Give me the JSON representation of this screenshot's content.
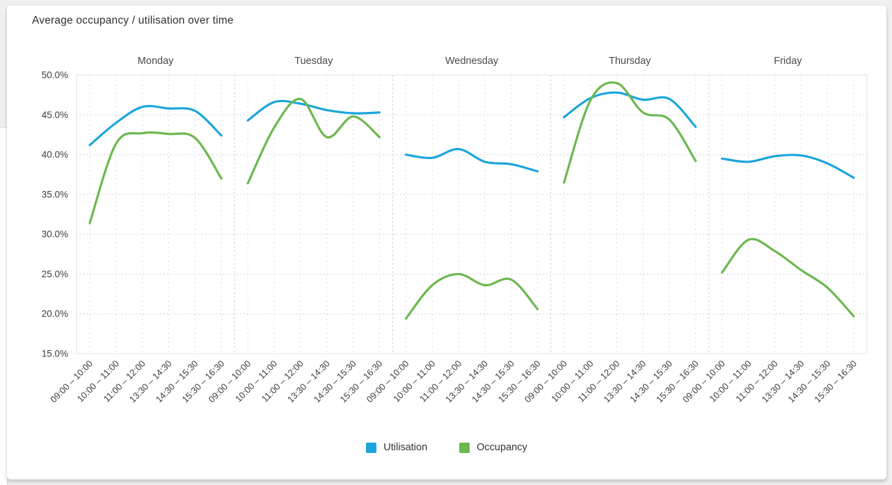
{
  "chart_data": {
    "type": "line",
    "title": "Average occupancy / utilisation over time",
    "ylabel": "",
    "xlabel": "",
    "y_axis": {
      "min": 15,
      "max": 50,
      "step": 5,
      "grid": true
    },
    "y_tick_labels": [
      "50.0%",
      "45.0%",
      "40.0%",
      "35.0%",
      "30.0%",
      "25.0%",
      "20.0%",
      "15.0%"
    ],
    "x_categories": [
      "09:00 – 10:00",
      "10:00 – 11:00",
      "11:00 – 12:00",
      "13:30 – 14:30",
      "14:30 – 15:30",
      "15:30 – 16:30"
    ],
    "series_meta": [
      {
        "name": "Utilisation",
        "color": "#1BA5DC"
      },
      {
        "name": "Occupancy",
        "color": "#6CB84F"
      }
    ],
    "panels": [
      {
        "day": "Monday",
        "series": [
          {
            "name": "Utilisation",
            "values": [
              41.2,
              44.0,
              46.0,
              45.8,
              45.5,
              42.4
            ]
          },
          {
            "name": "Occupancy",
            "values": [
              31.4,
              41.4,
              42.7,
              42.6,
              42.1,
              37.0
            ]
          }
        ]
      },
      {
        "day": "Tuesday",
        "series": [
          {
            "name": "Utilisation",
            "values": [
              44.3,
              46.6,
              46.4,
              45.6,
              45.2,
              45.3
            ]
          },
          {
            "name": "Occupancy",
            "values": [
              36.4,
              43.4,
              47.0,
              42.2,
              44.8,
              42.2
            ]
          }
        ]
      },
      {
        "day": "Wednesday",
        "series": [
          {
            "name": "Utilisation",
            "values": [
              40.0,
              39.6,
              40.7,
              39.1,
              38.8,
              37.9
            ]
          },
          {
            "name": "Occupancy",
            "values": [
              19.4,
              23.6,
              25.0,
              23.6,
              24.3,
              20.6
            ]
          }
        ]
      },
      {
        "day": "Thursday",
        "series": [
          {
            "name": "Utilisation",
            "values": [
              44.7,
              47.1,
              47.8,
              46.9,
              47.0,
              43.5
            ]
          },
          {
            "name": "Occupancy",
            "values": [
              36.5,
              46.8,
              49.0,
              45.3,
              44.4,
              39.2
            ]
          }
        ]
      },
      {
        "day": "Friday",
        "series": [
          {
            "name": "Utilisation",
            "values": [
              39.5,
              39.1,
              39.8,
              39.9,
              38.9,
              37.1
            ]
          },
          {
            "name": "Occupancy",
            "values": [
              25.2,
              29.3,
              27.9,
              25.5,
              23.3,
              19.7
            ]
          }
        ]
      }
    ],
    "legend": {
      "position": "bottom",
      "items": [
        "Utilisation",
        "Occupancy"
      ]
    },
    "style": {
      "grid_color": "#c9cbd1",
      "tick_grid_color": "#ced1d7",
      "separator_color": "#ccd3dc",
      "border_color": "#e1e2e8",
      "axis_label_color": "#3d3d3d",
      "panel_title_color": "#4a4a4a",
      "line_width": 3.2
    }
  }
}
